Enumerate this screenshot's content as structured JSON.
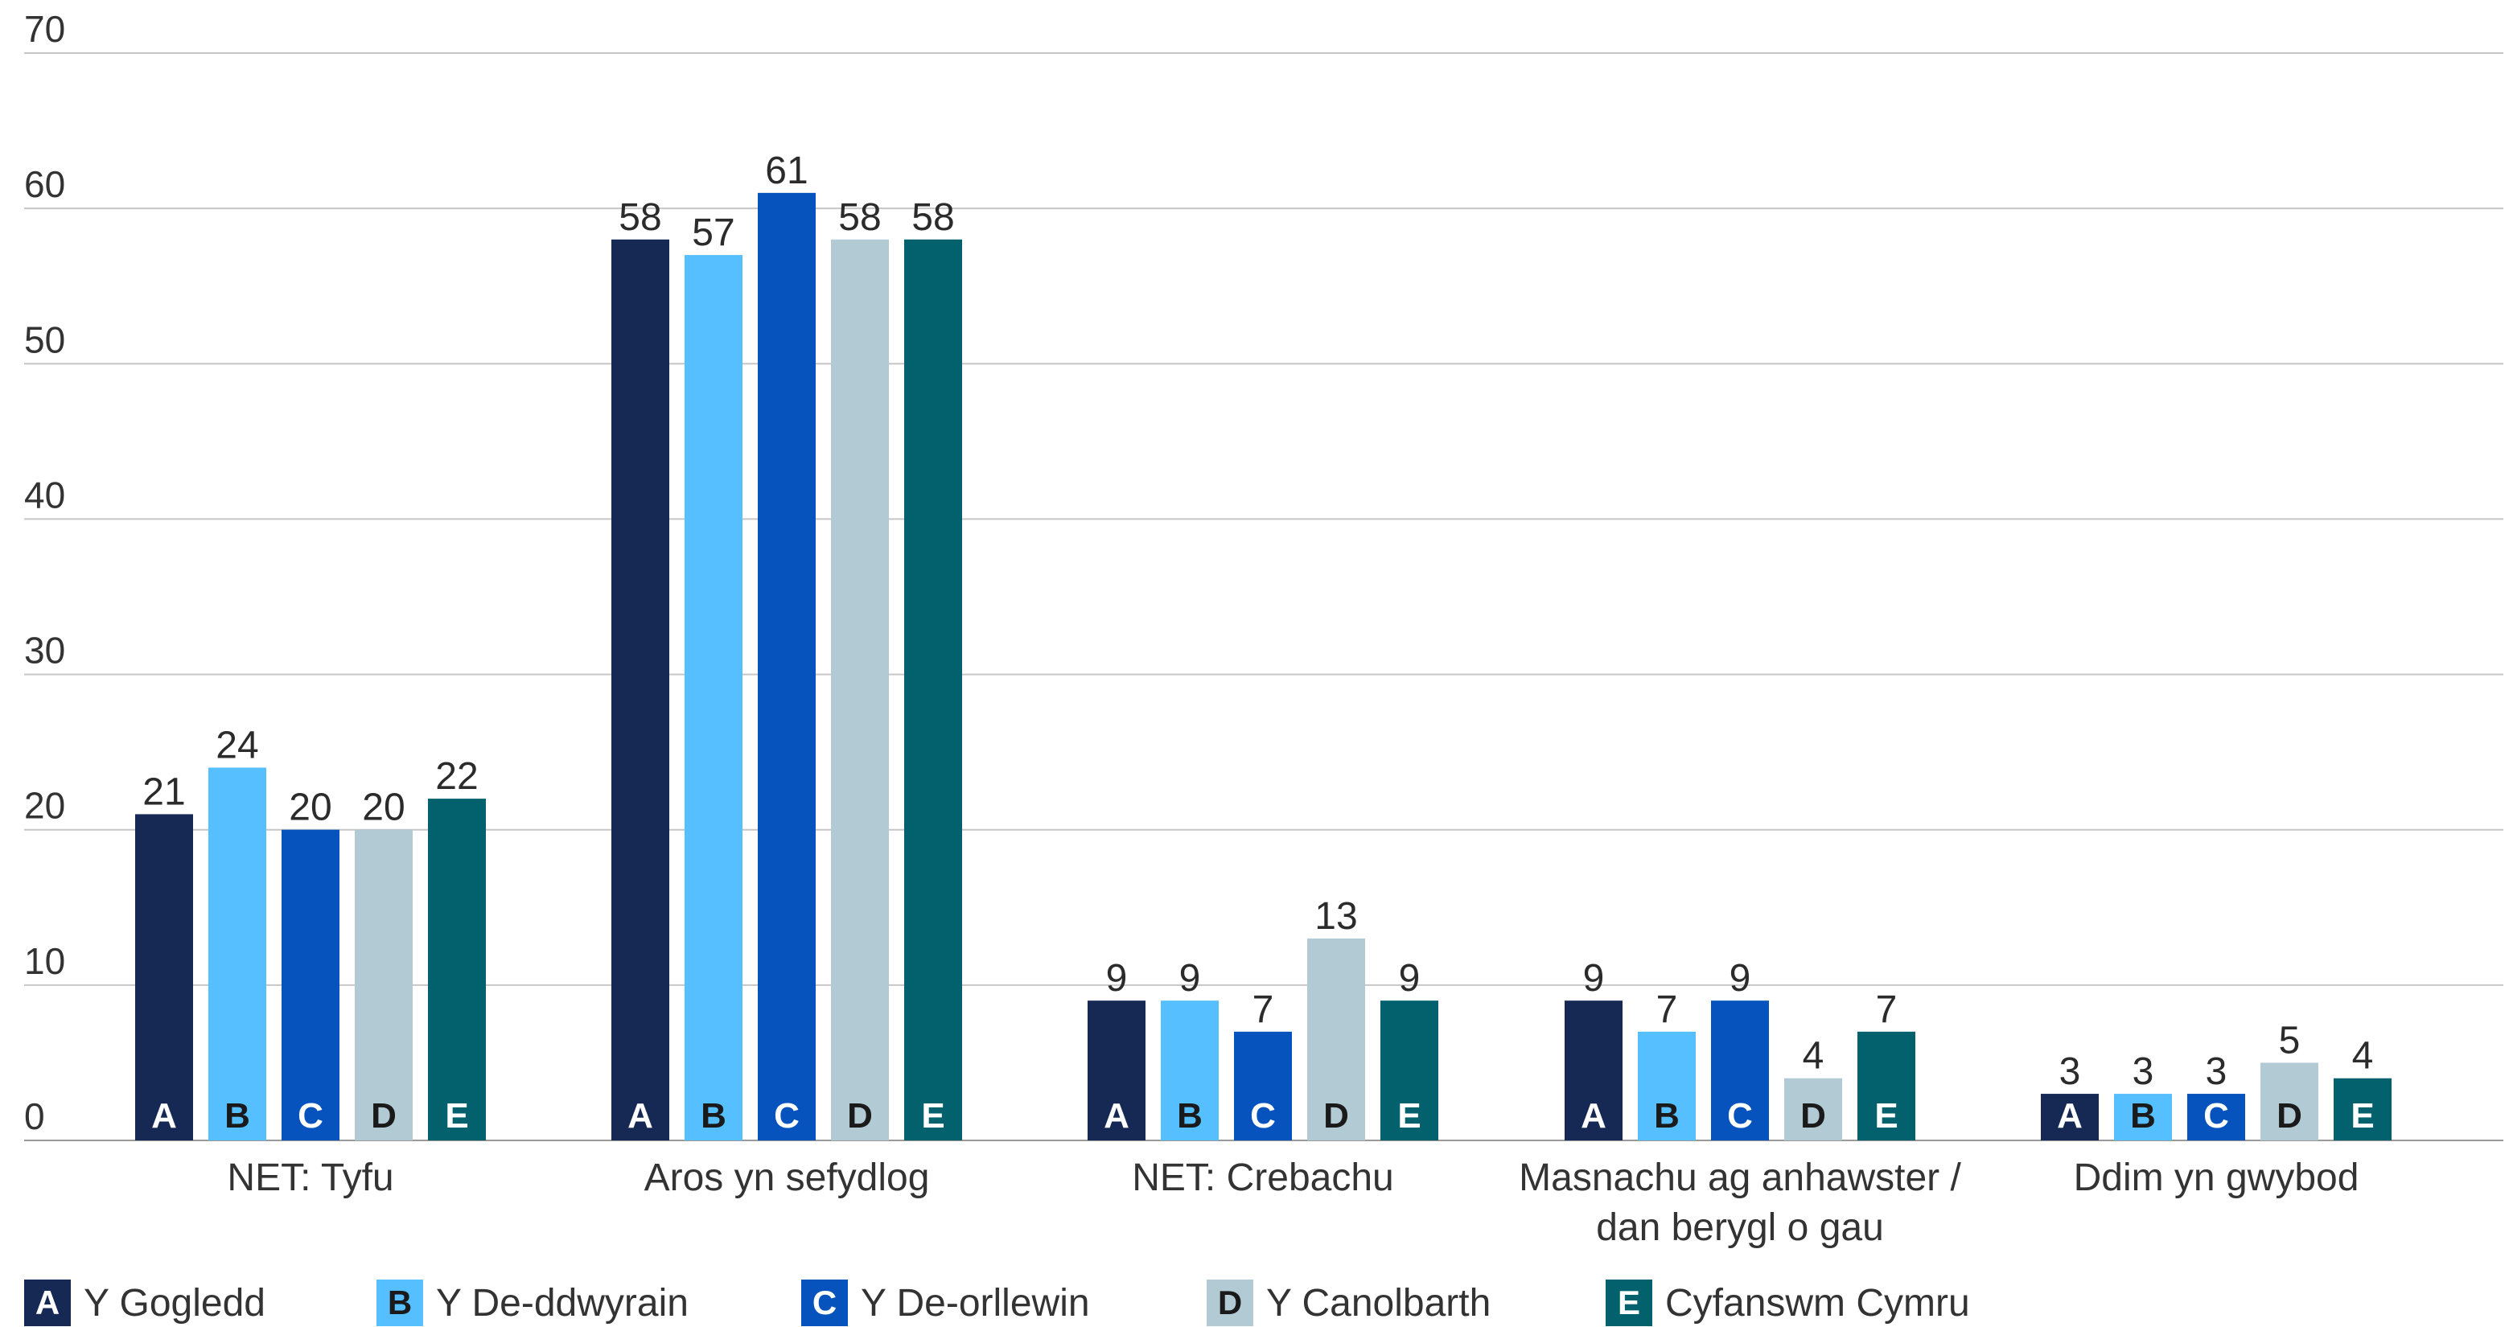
{
  "chart_data": {
    "type": "bar",
    "title": "",
    "xlabel": "",
    "ylabel": "",
    "ylim": [
      0,
      70
    ],
    "yticks": [
      0,
      10,
      20,
      30,
      40,
      50,
      60,
      70
    ],
    "grid": true,
    "legend_position": "bottom",
    "categories": [
      [
        "NET: Tyfu"
      ],
      [
        "Aros yn sefydlog"
      ],
      [
        "NET: Crebachu"
      ],
      [
        "Masnachu ag anhawster /",
        "dan berygl o gau"
      ],
      [
        "Ddim yn gwybod"
      ]
    ],
    "series": [
      {
        "name": "Y Gogledd",
        "letter": "A",
        "color": "#162955",
        "letter_color": "#ffffff",
        "values": [
          21,
          58,
          9,
          9,
          3
        ],
        "labels": [
          "21",
          "58",
          "9",
          "9",
          "3"
        ]
      },
      {
        "name": "Y De-ddwyrain",
        "letter": "B",
        "color": "#56bfff",
        "letter_color": "#1a1a1a",
        "values": [
          24,
          57,
          9,
          7,
          3
        ],
        "labels": [
          "24",
          "57",
          "9",
          "7",
          "3"
        ]
      },
      {
        "name": "Y De-orllewin",
        "letter": "C",
        "color": "#0653be",
        "letter_color": "#ffffff",
        "values": [
          20,
          61,
          7,
          9,
          3
        ],
        "labels": [
          "20",
          "61",
          "7",
          "9",
          "3"
        ]
      },
      {
        "name": "Y Canolbarth",
        "letter": "D",
        "color": "#b2cad4",
        "letter_color": "#1a1a1a",
        "values": [
          20,
          58,
          13,
          4,
          5
        ],
        "labels": [
          "20",
          "58",
          "13",
          "4",
          "5"
        ]
      },
      {
        "name": "Cyfanswm Cymru",
        "letter": "E",
        "color": "#02616c",
        "letter_color": "#ffffff",
        "values": [
          22,
          58,
          9,
          7,
          4
        ],
        "labels": [
          "22",
          "58",
          "9",
          "7",
          "4"
        ]
      }
    ]
  }
}
